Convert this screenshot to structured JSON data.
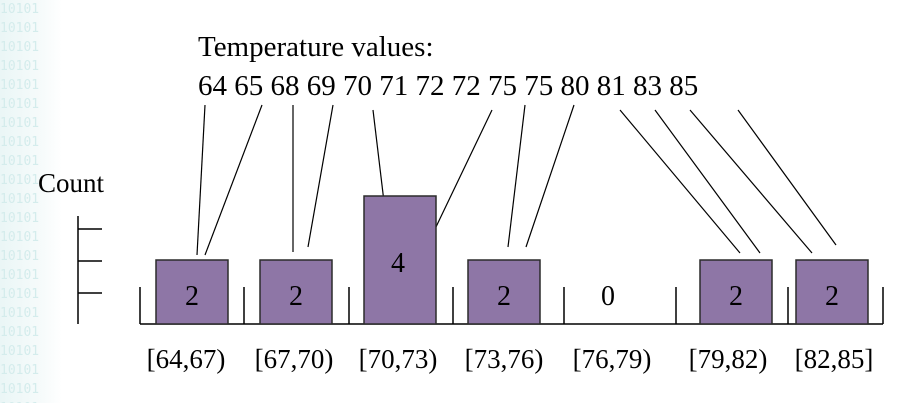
{
  "background_digits": "10101",
  "title": "Temperature values:",
  "values_text": "64 65 68 69 70 71 72 72 75 75 80 81 83 85",
  "temperature_values": [
    64,
    65,
    68,
    69,
    70,
    71,
    72,
    72,
    75,
    75,
    80,
    81,
    83,
    85
  ],
  "count_label": "Count",
  "bins": [
    {
      "label": "[64,67)",
      "count": 2,
      "count_text": "2"
    },
    {
      "label": "[67,70)",
      "count": 2,
      "count_text": "2"
    },
    {
      "label": "[70,73)",
      "count": 4,
      "count_text": "4"
    },
    {
      "label": "[73,76)",
      "count": 2,
      "count_text": "2"
    },
    {
      "label": "[76,79)",
      "count": 0,
      "count_text": "0"
    },
    {
      "label": "[79,82)",
      "count": 2,
      "count_text": "2"
    },
    {
      "label": "[82,85]",
      "count": 2,
      "count_text": "2"
    }
  ],
  "bar_color": "#8e76a6",
  "bar_border_color": "#2b2b2b"
}
